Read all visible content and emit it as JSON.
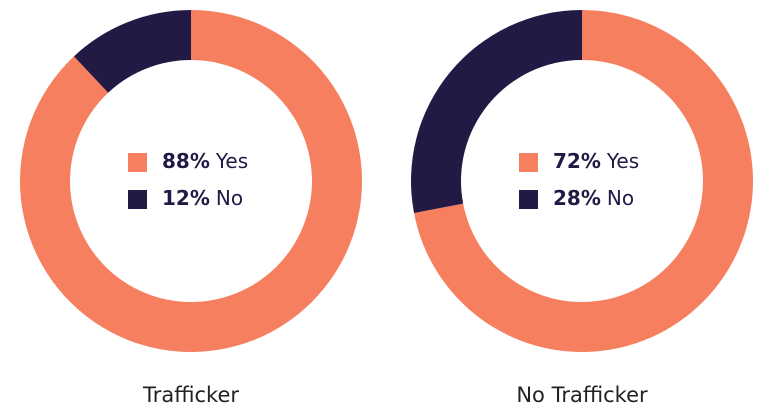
{
  "chart_data": [
    {
      "type": "pie",
      "donut": true,
      "title": "Trafficker",
      "categories": [
        "Yes",
        "No"
      ],
      "values": [
        88,
        12
      ],
      "value_labels": [
        "88%",
        "12%"
      ],
      "colors": [
        "#f57f5f",
        "#221a45"
      ],
      "legend": "center"
    },
    {
      "type": "pie",
      "donut": true,
      "title": "No Trafficker",
      "categories": [
        "Yes",
        "No"
      ],
      "values": [
        72,
        28
      ],
      "value_labels": [
        "72%",
        "28%"
      ],
      "colors": [
        "#f57f5f",
        "#221a45"
      ],
      "legend": "center"
    }
  ]
}
